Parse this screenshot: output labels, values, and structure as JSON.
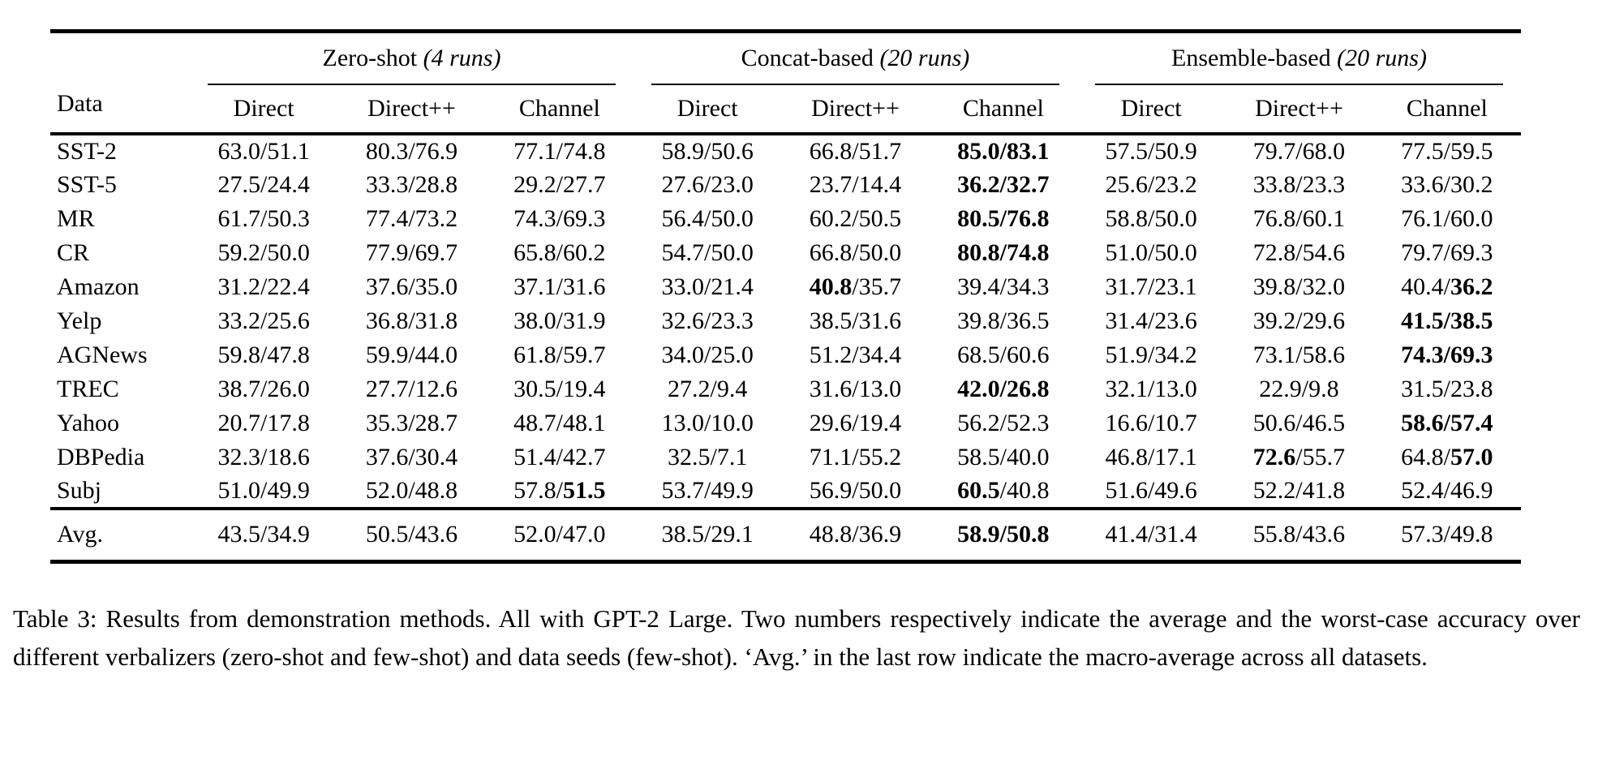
{
  "page": {
    "background": "#ffffff",
    "text_color": "#000000"
  },
  "table": {
    "data_header": "Data",
    "groups": [
      {
        "label": "Zero-shot",
        "runs": "(4 runs)"
      },
      {
        "label": "Concat-based",
        "runs": "(20 runs)"
      },
      {
        "label": "Ensemble-based",
        "runs": "(20 runs)"
      }
    ],
    "sub_columns": [
      "Direct",
      "Direct++",
      "Channel"
    ],
    "cell_format": "[average, worst_case, bold_average(0/1), bold_worst(0/1)]",
    "rows": [
      {
        "name": "SST-2",
        "cells": [
          [
            "63.0",
            "51.1",
            0,
            0
          ],
          [
            "80.3",
            "76.9",
            0,
            0
          ],
          [
            "77.1",
            "74.8",
            0,
            0
          ],
          [
            "58.9",
            "50.6",
            0,
            0
          ],
          [
            "66.8",
            "51.7",
            0,
            0
          ],
          [
            "85.0",
            "83.1",
            1,
            1
          ],
          [
            "57.5",
            "50.9",
            0,
            0
          ],
          [
            "79.7",
            "68.0",
            0,
            0
          ],
          [
            "77.5",
            "59.5",
            0,
            0
          ]
        ]
      },
      {
        "name": "SST-5",
        "cells": [
          [
            "27.5",
            "24.4",
            0,
            0
          ],
          [
            "33.3",
            "28.8",
            0,
            0
          ],
          [
            "29.2",
            "27.7",
            0,
            0
          ],
          [
            "27.6",
            "23.0",
            0,
            0
          ],
          [
            "23.7",
            "14.4",
            0,
            0
          ],
          [
            "36.2",
            "32.7",
            1,
            1
          ],
          [
            "25.6",
            "23.2",
            0,
            0
          ],
          [
            "33.8",
            "23.3",
            0,
            0
          ],
          [
            "33.6",
            "30.2",
            0,
            0
          ]
        ]
      },
      {
        "name": "MR",
        "cells": [
          [
            "61.7",
            "50.3",
            0,
            0
          ],
          [
            "77.4",
            "73.2",
            0,
            0
          ],
          [
            "74.3",
            "69.3",
            0,
            0
          ],
          [
            "56.4",
            "50.0",
            0,
            0
          ],
          [
            "60.2",
            "50.5",
            0,
            0
          ],
          [
            "80.5",
            "76.8",
            1,
            1
          ],
          [
            "58.8",
            "50.0",
            0,
            0
          ],
          [
            "76.8",
            "60.1",
            0,
            0
          ],
          [
            "76.1",
            "60.0",
            0,
            0
          ]
        ]
      },
      {
        "name": "CR",
        "cells": [
          [
            "59.2",
            "50.0",
            0,
            0
          ],
          [
            "77.9",
            "69.7",
            0,
            0
          ],
          [
            "65.8",
            "60.2",
            0,
            0
          ],
          [
            "54.7",
            "50.0",
            0,
            0
          ],
          [
            "66.8",
            "50.0",
            0,
            0
          ],
          [
            "80.8",
            "74.8",
            1,
            1
          ],
          [
            "51.0",
            "50.0",
            0,
            0
          ],
          [
            "72.8",
            "54.6",
            0,
            0
          ],
          [
            "79.7",
            "69.3",
            0,
            0
          ]
        ]
      },
      {
        "name": "Amazon",
        "cells": [
          [
            "31.2",
            "22.4",
            0,
            0
          ],
          [
            "37.6",
            "35.0",
            0,
            0
          ],
          [
            "37.1",
            "31.6",
            0,
            0
          ],
          [
            "33.0",
            "21.4",
            0,
            0
          ],
          [
            "40.8",
            "35.7",
            1,
            0
          ],
          [
            "39.4",
            "34.3",
            0,
            0
          ],
          [
            "31.7",
            "23.1",
            0,
            0
          ],
          [
            "39.8",
            "32.0",
            0,
            0
          ],
          [
            "40.4",
            "36.2",
            0,
            1
          ]
        ]
      },
      {
        "name": "Yelp",
        "cells": [
          [
            "33.2",
            "25.6",
            0,
            0
          ],
          [
            "36.8",
            "31.8",
            0,
            0
          ],
          [
            "38.0",
            "31.9",
            0,
            0
          ],
          [
            "32.6",
            "23.3",
            0,
            0
          ],
          [
            "38.5",
            "31.6",
            0,
            0
          ],
          [
            "39.8",
            "36.5",
            0,
            0
          ],
          [
            "31.4",
            "23.6",
            0,
            0
          ],
          [
            "39.2",
            "29.6",
            0,
            0
          ],
          [
            "41.5",
            "38.5",
            1,
            1
          ]
        ]
      },
      {
        "name": "AGNews",
        "cells": [
          [
            "59.8",
            "47.8",
            0,
            0
          ],
          [
            "59.9",
            "44.0",
            0,
            0
          ],
          [
            "61.8",
            "59.7",
            0,
            0
          ],
          [
            "34.0",
            "25.0",
            0,
            0
          ],
          [
            "51.2",
            "34.4",
            0,
            0
          ],
          [
            "68.5",
            "60.6",
            0,
            0
          ],
          [
            "51.9",
            "34.2",
            0,
            0
          ],
          [
            "73.1",
            "58.6",
            0,
            0
          ],
          [
            "74.3",
            "69.3",
            1,
            1
          ]
        ]
      },
      {
        "name": "TREC",
        "cells": [
          [
            "38.7",
            "26.0",
            0,
            0
          ],
          [
            "27.7",
            "12.6",
            0,
            0
          ],
          [
            "30.5",
            "19.4",
            0,
            0
          ],
          [
            "27.2",
            "9.4",
            0,
            0
          ],
          [
            "31.6",
            "13.0",
            0,
            0
          ],
          [
            "42.0",
            "26.8",
            1,
            1
          ],
          [
            "32.1",
            "13.0",
            0,
            0
          ],
          [
            "22.9",
            "9.8",
            0,
            0
          ],
          [
            "31.5",
            "23.8",
            0,
            0
          ]
        ]
      },
      {
        "name": "Yahoo",
        "cells": [
          [
            "20.7",
            "17.8",
            0,
            0
          ],
          [
            "35.3",
            "28.7",
            0,
            0
          ],
          [
            "48.7",
            "48.1",
            0,
            0
          ],
          [
            "13.0",
            "10.0",
            0,
            0
          ],
          [
            "29.6",
            "19.4",
            0,
            0
          ],
          [
            "56.2",
            "52.3",
            0,
            0
          ],
          [
            "16.6",
            "10.7",
            0,
            0
          ],
          [
            "50.6",
            "46.5",
            0,
            0
          ],
          [
            "58.6",
            "57.4",
            1,
            1
          ]
        ]
      },
      {
        "name": "DBPedia",
        "cells": [
          [
            "32.3",
            "18.6",
            0,
            0
          ],
          [
            "37.6",
            "30.4",
            0,
            0
          ],
          [
            "51.4",
            "42.7",
            0,
            0
          ],
          [
            "32.5",
            "7.1",
            0,
            0
          ],
          [
            "71.1",
            "55.2",
            0,
            0
          ],
          [
            "58.5",
            "40.0",
            0,
            0
          ],
          [
            "46.8",
            "17.1",
            0,
            0
          ],
          [
            "72.6",
            "55.7",
            1,
            0
          ],
          [
            "64.8",
            "57.0",
            0,
            1
          ]
        ]
      },
      {
        "name": "Subj",
        "cells": [
          [
            "51.0",
            "49.9",
            0,
            0
          ],
          [
            "52.0",
            "48.8",
            0,
            0
          ],
          [
            "57.8",
            "51.5",
            0,
            1
          ],
          [
            "53.7",
            "49.9",
            0,
            0
          ],
          [
            "56.9",
            "50.0",
            0,
            0
          ],
          [
            "60.5",
            "40.8",
            1,
            0
          ],
          [
            "51.6",
            "49.6",
            0,
            0
          ],
          [
            "52.2",
            "41.8",
            0,
            0
          ],
          [
            "52.4",
            "46.9",
            0,
            0
          ]
        ]
      }
    ],
    "avg_row": {
      "name": "Avg.",
      "cells": [
        [
          "43.5",
          "34.9",
          0,
          0
        ],
        [
          "50.5",
          "43.6",
          0,
          0
        ],
        [
          "52.0",
          "47.0",
          0,
          0
        ],
        [
          "38.5",
          "29.1",
          0,
          0
        ],
        [
          "48.8",
          "36.9",
          0,
          0
        ],
        [
          "58.9",
          "50.8",
          1,
          1
        ],
        [
          "41.4",
          "31.4",
          0,
          0
        ],
        [
          "55.8",
          "43.6",
          0,
          0
        ],
        [
          "57.3",
          "49.8",
          0,
          0
        ]
      ]
    }
  },
  "caption": "Table 3: Results from demonstration methods. All with GPT-2 Large. Two numbers respectively indicate the average and the worst-case accuracy over different verbalizers (zero-shot and few-shot) and data seeds (few-shot). ‘Avg.’ in the last row indicate the macro-average across all datasets."
}
